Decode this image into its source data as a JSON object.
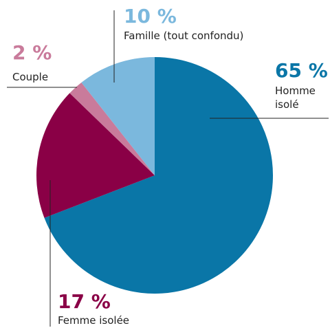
{
  "chart_data": {
    "type": "pie",
    "categories": [
      "Homme isolé",
      "Femme isolée",
      "Couple",
      "Famille (tout confondu)"
    ],
    "values": [
      65,
      17,
      2,
      10
    ],
    "value_labels": [
      "65 %",
      "17 %",
      "2 %",
      "10 %"
    ],
    "colors": [
      "#0a76a7",
      "#8a0046",
      "#c97b9b",
      "#7bb8dd"
    ]
  }
}
